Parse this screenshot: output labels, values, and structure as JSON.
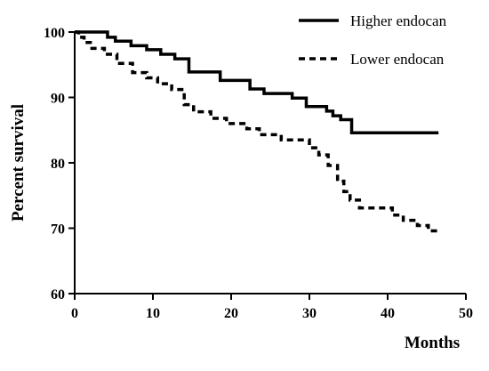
{
  "chart_data": {
    "type": "line",
    "xlabel": "Months",
    "ylabel": "Percent survival",
    "xlim": [
      0,
      50
    ],
    "ylim": [
      60,
      100
    ],
    "xticks": [
      "0",
      "10",
      "20",
      "30",
      "40",
      "50"
    ],
    "yticks": [
      "60",
      "70",
      "80",
      "90",
      "100"
    ],
    "grid": false,
    "legend_position": "top-right",
    "series": [
      {
        "name": "Higher endocan",
        "line_style": "solid",
        "color": "#000000",
        "x": [
          0,
          4.2,
          5.2,
          7.2,
          9.2,
          11.0,
          12.8,
          14.6,
          18.6,
          22.4,
          24.2,
          27.8,
          29.6,
          32.2,
          33.0,
          34.0,
          35.4,
          46.5
        ],
        "y": [
          100,
          99.2,
          98.6,
          97.9,
          97.3,
          96.6,
          95.9,
          93.9,
          92.6,
          91.3,
          90.6,
          89.9,
          88.6,
          87.9,
          87.2,
          86.6,
          84.6,
          84.6
        ]
      },
      {
        "name": "Lower endocan",
        "line_style": "dashed",
        "color": "#000000",
        "x": [
          0,
          0.5,
          1.2,
          2.0,
          3.8,
          5.4,
          7.4,
          9.2,
          10.6,
          12.4,
          14.0,
          15.2,
          17.4,
          19.4,
          22.0,
          23.6,
          26.4,
          30.0,
          31.2,
          32.4,
          33.6,
          34.4,
          35.2,
          36.4,
          40.6,
          42.0,
          43.8,
          45.2,
          46.5
        ],
        "y": [
          100,
          99.2,
          98.4,
          97.5,
          96.6,
          95.2,
          93.8,
          93.0,
          92.1,
          91.2,
          88.9,
          87.8,
          86.8,
          86.0,
          85.2,
          84.3,
          83.5,
          82.3,
          81.2,
          79.6,
          77.2,
          75.6,
          74.3,
          73.1,
          72.0,
          71.2,
          70.4,
          69.6,
          69.6
        ]
      }
    ]
  }
}
